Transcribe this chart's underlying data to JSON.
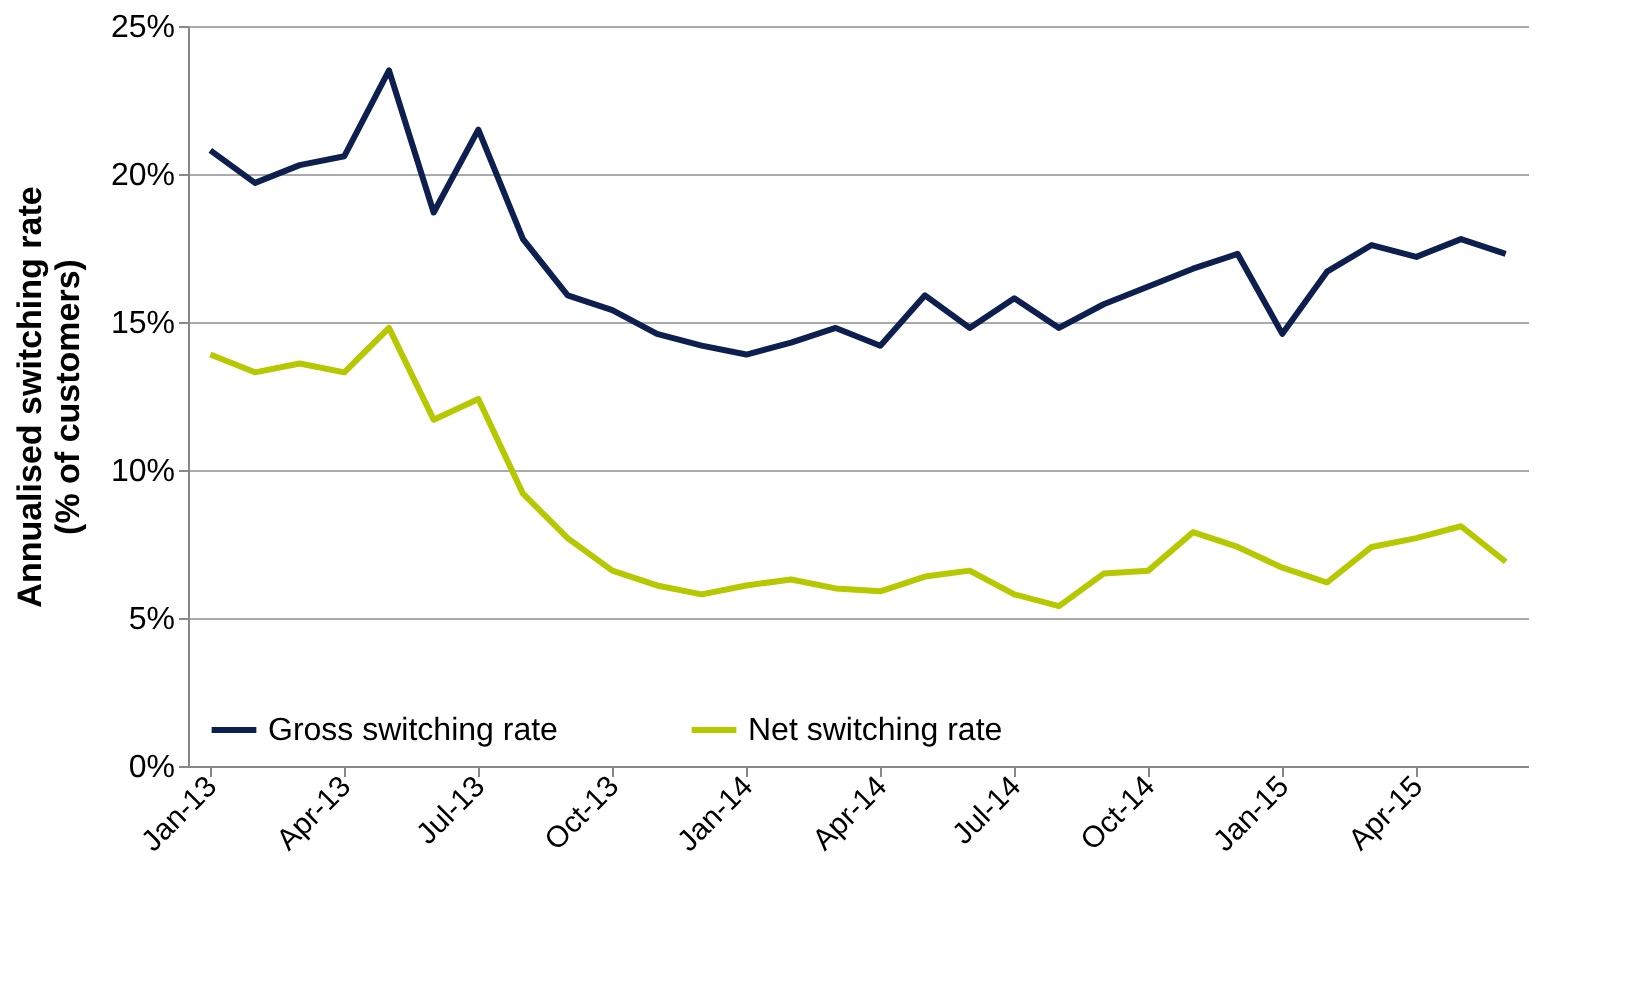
{
  "chart_data": {
    "type": "line",
    "ylabel": "Annualised switching rate\n(% of customers)",
    "categories": [
      "Jan-13",
      null,
      null,
      "Apr-13",
      null,
      null,
      "Jul-13",
      null,
      null,
      "Oct-13",
      null,
      null,
      "Jan-14",
      null,
      null,
      "Apr-14",
      null,
      null,
      "Jul-14",
      null,
      null,
      "Oct-14",
      null,
      null,
      "Jan-15",
      null,
      null,
      "Apr-15",
      null,
      null
    ],
    "series": [
      {
        "name": "Gross switching rate",
        "color": "#0d1f4f",
        "values": [
          20.8,
          19.7,
          20.3,
          20.6,
          23.5,
          18.7,
          21.5,
          17.8,
          15.9,
          15.4,
          14.6,
          14.2,
          13.9,
          14.3,
          14.8,
          14.2,
          15.9,
          14.8,
          15.8,
          14.8,
          15.6,
          16.2,
          16.8,
          17.3,
          14.6,
          16.7,
          17.6,
          17.2,
          17.8,
          17.3
        ]
      },
      {
        "name": "Net switching rate",
        "color": "#b5c800",
        "values": [
          13.9,
          13.3,
          13.6,
          13.3,
          14.8,
          11.7,
          12.4,
          9.2,
          7.7,
          6.6,
          6.1,
          5.8,
          6.1,
          6.3,
          6.0,
          5.9,
          6.4,
          6.6,
          5.8,
          5.4,
          6.5,
          6.6,
          7.9,
          7.4,
          6.7,
          6.2,
          7.4,
          7.7,
          8.1,
          6.9
        ]
      }
    ],
    "ylim": [
      0,
      25
    ],
    "yticks": [
      {
        "value": 0,
        "label": "0%"
      },
      {
        "value": 5,
        "label": "5%"
      },
      {
        "value": 10,
        "label": "10%"
      },
      {
        "value": 15,
        "label": "15%"
      },
      {
        "value": 20,
        "label": "20%"
      },
      {
        "value": 25,
        "label": "25%"
      }
    ],
    "grid": "y",
    "legend": "bottom left",
    "marker": "none",
    "line_style": "solid"
  }
}
